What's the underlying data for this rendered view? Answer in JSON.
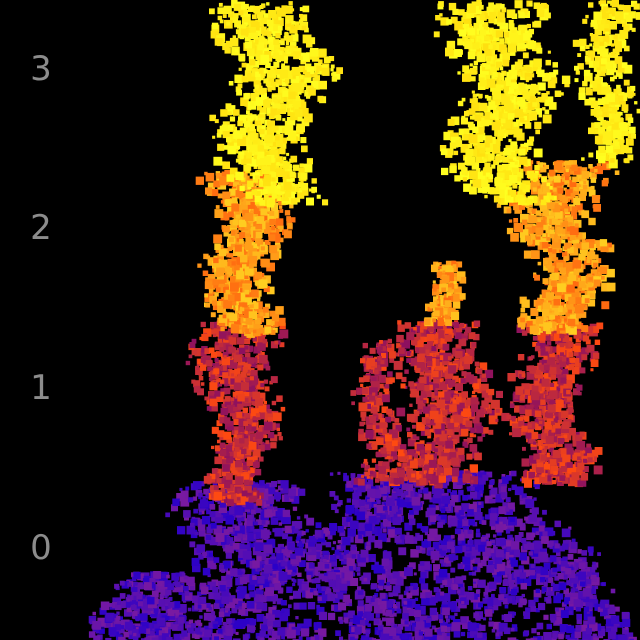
{
  "axis": {
    "tick_labels": [
      "3",
      "2",
      "1",
      "0"
    ],
    "tick_color": "#8c8c8c"
  },
  "background_color": "#000000",
  "levels": [
    {
      "level": 0,
      "color_low": "#2a00c8",
      "color_high": "#7a1aa0"
    },
    {
      "level": 1,
      "color_low": "#8c1060",
      "color_high": "#ff4a10"
    },
    {
      "level": 2,
      "color_low": "#ff6a10",
      "color_high": "#ffd020"
    },
    {
      "level": 3,
      "color_low": "#ffe010",
      "color_high": "#ffff20"
    }
  ]
}
